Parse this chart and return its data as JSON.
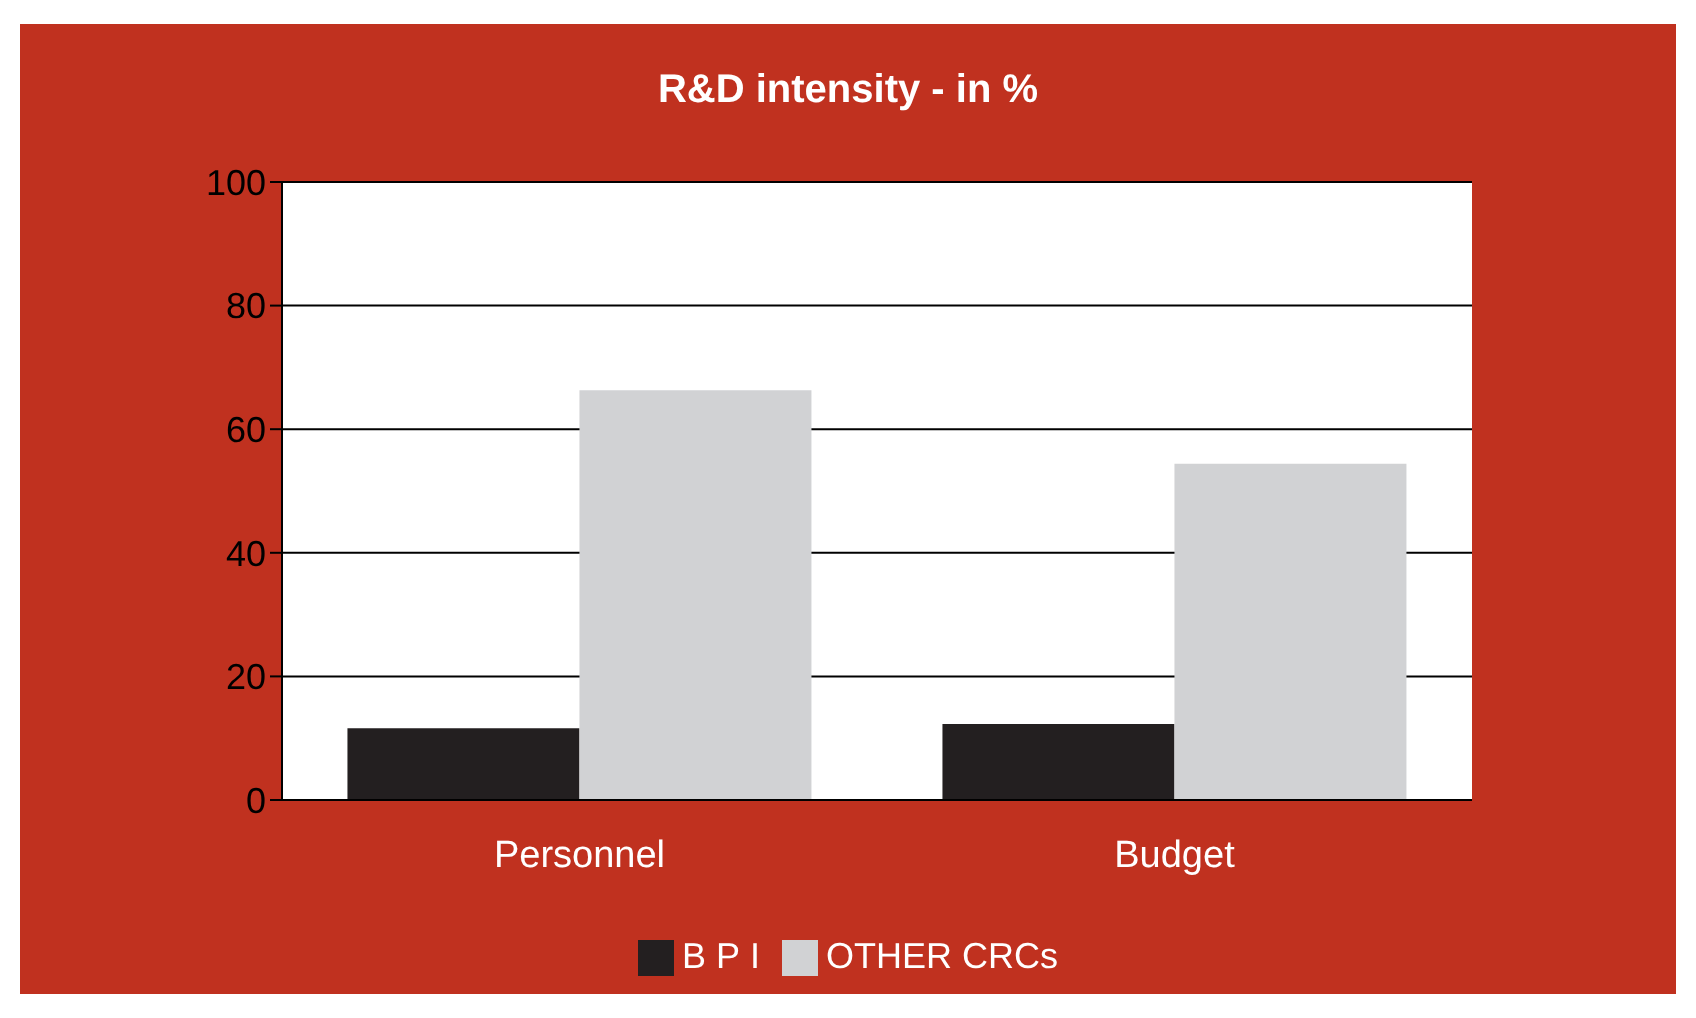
{
  "chart_data": {
    "type": "bar",
    "title": "R&D intensity - in %",
    "categories": [
      "Personnel",
      "Budget"
    ],
    "series": [
      {
        "name": "BPI",
        "color": "#231f20",
        "values": [
          11.6,
          12.3
        ]
      },
      {
        "name": "OTHER CRCs",
        "color": "#d1d2d4",
        "values": [
          66.3,
          54.4
        ]
      }
    ],
    "ylim": [
      0,
      100
    ],
    "yticks": [
      0,
      20,
      40,
      60,
      80,
      100
    ],
    "grid": "y",
    "legend": "bottom"
  }
}
